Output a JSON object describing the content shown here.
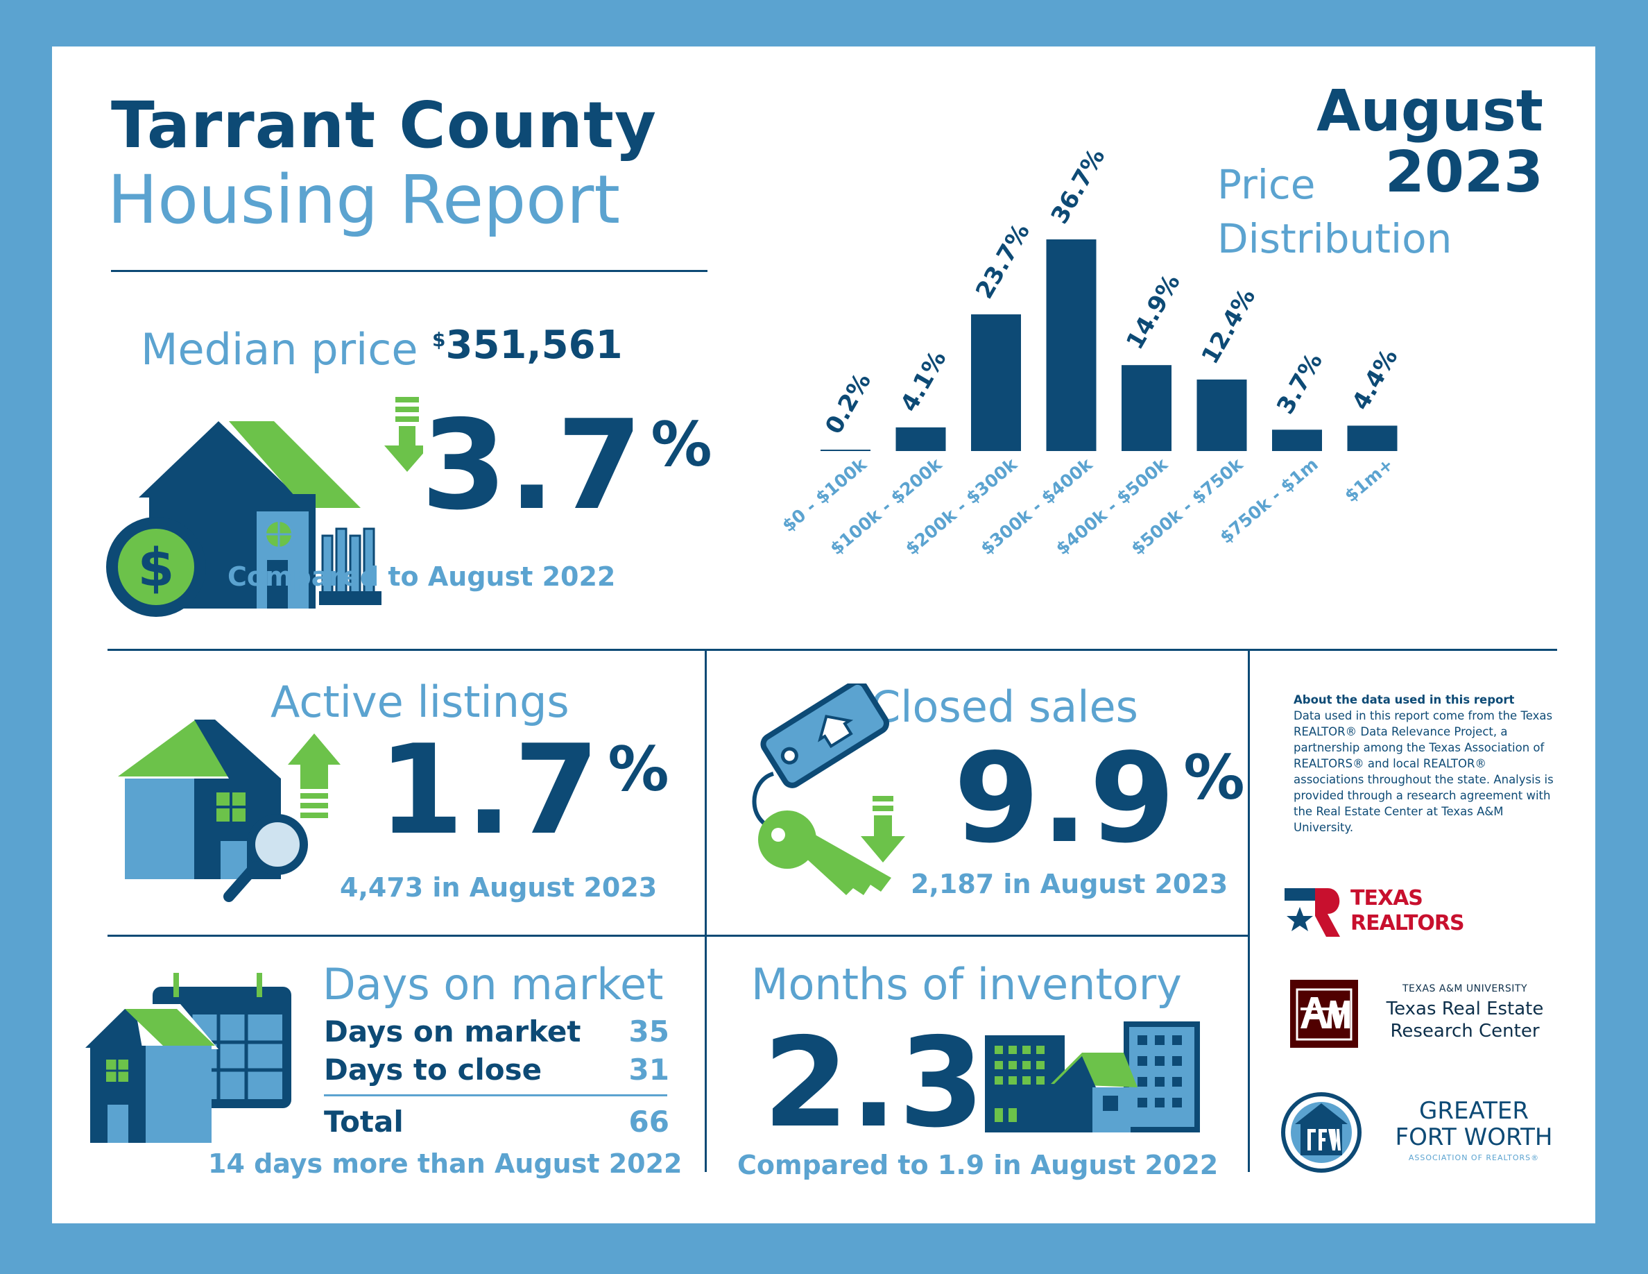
{
  "header": {
    "title_line1": "Tarrant County",
    "title_line2": "Housing Report",
    "month": "August",
    "year": "2023"
  },
  "price_distribution": {
    "label_line1": "Price",
    "label_line2": "Distribution"
  },
  "chart_data": {
    "type": "bar",
    "categories": [
      "$0 - $100k",
      "$100k - $200k",
      "$200k - $300k",
      "$300k - $400k",
      "$400k - $500k",
      "$500k - $750k",
      "$750k - $1m",
      "$1m+"
    ],
    "values": [
      0.2,
      4.1,
      23.7,
      36.7,
      14.9,
      12.4,
      3.7,
      4.4
    ],
    "value_labels": [
      "0.2%",
      "4.1%",
      "23.7%",
      "36.7%",
      "14.9%",
      "12.4%",
      "3.7%",
      "4.4%"
    ],
    "title": "Price Distribution",
    "ylim": [
      0,
      40
    ]
  },
  "median": {
    "label": "Median price",
    "currency": "$",
    "value": "351,561",
    "change": "3.7",
    "change_unit": "%",
    "direction": "down",
    "comparison": "Compared to August 2022"
  },
  "active": {
    "label": "Active listings",
    "change": "1.7",
    "change_unit": "%",
    "direction": "up",
    "detail": "4,473 in August 2023"
  },
  "closed": {
    "label": "Closed sales",
    "change": "9.9",
    "change_unit": "%",
    "direction": "down",
    "detail": "2,187 in August 2023"
  },
  "days": {
    "label": "Days on market",
    "row1_label": "Days on market",
    "row1_value": "35",
    "row2_label": "Days to close",
    "row2_value": "31",
    "total_label": "Total",
    "total_value": "66",
    "comparison": "14 days more than August 2022"
  },
  "inventory": {
    "label": "Months of inventory",
    "value": "2.3",
    "comparison": "Compared to 1.9 in August 2022"
  },
  "about": {
    "heading": "About the data used in this report",
    "body": "Data used in this report come from the Texas REALTOR® Data Relevance Project, a partnership among the Texas Association of REALTORS® and local REALTOR® associations throughout the state. Analysis is provided through a research agreement with the Real Estate Center at Texas A&M University."
  },
  "logos": {
    "texas_realtors_line1": "TEXAS",
    "texas_realtors_line2": "REALTORS",
    "tamu_small": "TEXAS A&M UNIVERSITY",
    "tamu_line1": "Texas Real Estate",
    "tamu_line2": "Research Center",
    "gfw_line1": "GREATER",
    "gfw_line2": "FORT WORTH",
    "gfw_line3": "ASSOCIATION OF REALTORS®"
  },
  "colors": {
    "navy": "#0d4a75",
    "light_blue": "#5ba3d0",
    "green": "#6cc24a",
    "maroon": "#500000",
    "red": "#c8102e"
  }
}
